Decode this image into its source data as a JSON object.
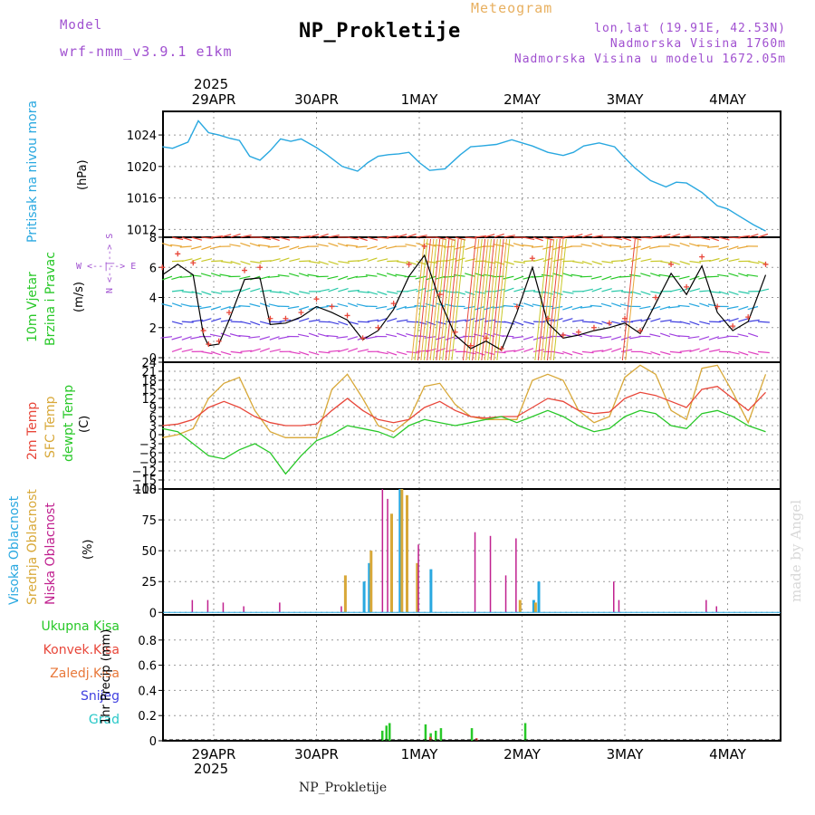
{
  "header": {
    "model_label": "Model",
    "model_name": "wrf-nmm_v3.9.1 e1km",
    "title": "NP_Prokletije",
    "subtitle": "Meteogram",
    "coords": "lon,lat (19.91E, 42.53N)",
    "elevation": "Nadmorska Visina 1760m",
    "model_elevation": "Nadmorska Visina u modelu 1672.05m",
    "footer": "NP_Prokletije",
    "credit": "made by Angel",
    "year": "2025"
  },
  "dates": [
    "29APR",
    "30APR",
    "1MAY",
    "2MAY",
    "3MAY",
    "4MAY"
  ],
  "colors": {
    "pressure": "#29a8e0",
    "temp2m": "#e8473a",
    "sfc": "#d8a838",
    "dew": "#28c828",
    "wind_speed": "#000000",
    "wind_gust": "#e8473a",
    "visoka": "#29a8e0",
    "srednja": "#d8a838",
    "niska": "#c0208f",
    "ukupna": "#28c828",
    "konvek": "#e8473a",
    "zaledj": "#e8783a",
    "snijeg": "#4040e0",
    "grad": "#28c8c8"
  },
  "labels": {
    "pressure": "Pritisak na nivou mora",
    "pressure_unit": "(hPa)",
    "wind1": "10m Vjetar",
    "wind2": "Brzina i Pravac",
    "wind_unit": "(m/s)",
    "compass": "W  <--|-->  E",
    "compass_n": "N  <--|-->  S",
    "temp1": "2m Temp",
    "temp2": "SFC Temp",
    "temp3": "dewpt Temp",
    "temp_unit": "(C)",
    "cloud1": "Visoka Oblacnost",
    "cloud2": "Srednja Oblacnost",
    "cloud3": "Niska Oblacnost",
    "cloud_unit": "(%)",
    "precip1": "Ukupna Kisa",
    "precip2": "Konvek.Kisa",
    "precip3": "Zaledj.Kisa",
    "precip4": "Snijeg",
    "precip5": "Grad",
    "precip_unit": "1hr Precip (mm)"
  },
  "chart_data": [
    {
      "type": "line",
      "name": "pressure",
      "ylabel": "(hPa)",
      "ylim": [
        1011,
        1027
      ],
      "yticks": [
        1012,
        1016,
        1020,
        1024
      ],
      "x_days": [
        0,
        0.1,
        0.25,
        0.35,
        0.45,
        0.55,
        0.65,
        0.75,
        0.85,
        0.95,
        1.05,
        1.15,
        1.25,
        1.35,
        1.5,
        1.6,
        1.75,
        1.9,
        2.0,
        2.1,
        2.2,
        2.3,
        2.4,
        2.5,
        2.6,
        2.75,
        2.9,
        3.0,
        3.1,
        3.25,
        3.4,
        3.5,
        3.6,
        3.75,
        3.9,
        4.0,
        4.1,
        4.25,
        4.4,
        4.5,
        4.6,
        4.75,
        4.9,
        5.0,
        5.1,
        5.25,
        5.4,
        5.5,
        5.6,
        5.75,
        5.87
      ],
      "values": [
        1022.5,
        1022.3,
        1023.1,
        1025.8,
        1024.3,
        1024.0,
        1023.6,
        1023.3,
        1021.3,
        1020.8,
        1022.0,
        1023.5,
        1023.2,
        1023.5,
        1022.4,
        1021.5,
        1020.0,
        1019.4,
        1020.5,
        1021.3,
        1021.5,
        1021.6,
        1021.8,
        1020.5,
        1019.5,
        1019.7,
        1021.5,
        1022.5,
        1022.6,
        1022.8,
        1023.4,
        1023.0,
        1022.6,
        1021.8,
        1021.4,
        1021.8,
        1022.6,
        1023.0,
        1022.5,
        1021.1,
        1019.8,
        1018.2,
        1017.4,
        1018.0,
        1017.9,
        1016.7,
        1015.0,
        1014.6,
        1013.8,
        1012.6,
        1011.8
      ]
    },
    {
      "type": "line",
      "name": "wind",
      "ylabel": "(m/s)",
      "ylim": [
        -0.3,
        8
      ],
      "yticks": [
        0,
        2,
        4,
        6,
        8
      ],
      "x_days": [
        0,
        0.15,
        0.3,
        0.4,
        0.45,
        0.55,
        0.65,
        0.8,
        0.95,
        1.05,
        1.2,
        1.35,
        1.5,
        1.65,
        1.8,
        1.95,
        2.1,
        2.25,
        2.4,
        2.55,
        2.7,
        2.85,
        3.0,
        3.15,
        3.3,
        3.45,
        3.6,
        3.75,
        3.9,
        4.05,
        4.2,
        4.35,
        4.5,
        4.65,
        4.8,
        4.95,
        5.1,
        5.25,
        5.4,
        5.55,
        5.7,
        5.87
      ],
      "values": [
        5.5,
        6.2,
        5.5,
        1.5,
        0.8,
        0.9,
        2.5,
        5.2,
        5.3,
        2.2,
        2.3,
        2.7,
        3.4,
        3.0,
        2.5,
        1.2,
        1.8,
        3.2,
        5.4,
        6.8,
        3.8,
        1.5,
        0.6,
        1.1,
        0.5,
        3.0,
        6.0,
        2.3,
        1.3,
        1.5,
        1.8,
        2.0,
        2.3,
        1.6,
        3.6,
        5.6,
        4.2,
        6.1,
        3.0,
        1.8,
        2.4,
        5.5
      ],
      "gust_values": [
        6.0,
        6.9,
        6.3,
        1.8,
        0.9,
        1.1,
        3.0,
        5.8,
        6.0,
        2.6,
        2.6,
        3.0,
        3.9,
        3.4,
        2.8,
        1.3,
        2.0,
        3.6,
        6.2,
        7.4,
        4.2,
        1.7,
        0.8,
        1.3,
        0.6,
        3.4,
        6.6,
        2.6,
        1.5,
        1.7,
        2.0,
        2.3,
        2.6,
        1.8,
        4.0,
        6.2,
        4.7,
        6.7,
        3.4,
        2.1,
        2.7,
        6.2
      ]
    },
    {
      "type": "line",
      "name": "temperature",
      "ylabel": "(C)",
      "ylim": [
        -18,
        24
      ],
      "yticks": [
        -18,
        -15,
        -12,
        -9,
        -6,
        -3,
        0,
        3,
        6,
        9,
        12,
        15,
        18,
        21,
        24
      ],
      "x_days": [
        0,
        0.15,
        0.3,
        0.45,
        0.6,
        0.75,
        0.9,
        1.05,
        1.2,
        1.35,
        1.5,
        1.65,
        1.8,
        1.95,
        2.1,
        2.25,
        2.4,
        2.55,
        2.7,
        2.85,
        3.0,
        3.15,
        3.3,
        3.45,
        3.6,
        3.75,
        3.9,
        4.05,
        4.2,
        4.35,
        4.5,
        4.65,
        4.8,
        4.95,
        5.1,
        5.25,
        5.4,
        5.55,
        5.7,
        5.87
      ],
      "series": [
        {
          "name": "2m Temp",
          "values": [
            3,
            3.5,
            5,
            9,
            11,
            9,
            6,
            4,
            3,
            3,
            3.5,
            8,
            12,
            8,
            5,
            4,
            5,
            9,
            11,
            8,
            6,
            5.5,
            6,
            6,
            9,
            12,
            11,
            8,
            7,
            7.5,
            12,
            14,
            13,
            11,
            9,
            15,
            16,
            12,
            8,
            14
          ]
        },
        {
          "name": "SFC Temp",
          "values": [
            -1,
            0,
            2,
            12,
            17,
            19,
            8,
            1,
            -1,
            -1,
            -1,
            15,
            20,
            12,
            3,
            1,
            5,
            16,
            17,
            10,
            6,
            5,
            5,
            5,
            18,
            20,
            18,
            8,
            4,
            6,
            19,
            23,
            20,
            8,
            5,
            22,
            23,
            14,
            4,
            20
          ]
        },
        {
          "name": "dewpt Temp",
          "values": [
            2,
            1,
            -3,
            -7,
            -8,
            -5,
            -3,
            -6,
            -13,
            -7,
            -2,
            0,
            3,
            2,
            1,
            -1,
            3,
            5,
            4,
            3,
            4,
            5,
            6,
            4,
            6,
            8,
            6,
            3,
            1,
            2,
            6,
            8,
            7,
            3,
            2,
            7,
            8,
            6,
            3,
            1
          ]
        }
      ]
    },
    {
      "type": "bar",
      "name": "cloud",
      "ylabel": "(%)",
      "ylim": [
        -2,
        100
      ],
      "yticks": [
        0,
        25,
        50,
        75,
        100
      ],
      "series": [
        {
          "name": "Visoka Oblacnost",
          "x_days": [
            1.95,
            2.0,
            2.3,
            2.6,
            3.6,
            3.65
          ],
          "values": [
            25,
            40,
            100,
            35,
            10,
            25
          ]
        },
        {
          "name": "Srednja Oblacnost",
          "x_days": [
            1.75,
            2.0,
            2.2,
            2.3,
            2.35,
            2.45,
            3.45,
            3.6
          ],
          "values": [
            30,
            50,
            80,
            100,
            95,
            40,
            10,
            8
          ]
        },
        {
          "name": "Niska Oblacnost",
          "x_days": [
            0.25,
            0.4,
            0.55,
            0.75,
            1.1,
            1.7,
            2.1,
            2.15,
            2.45,
            3.0,
            3.15,
            3.3,
            3.4,
            4.35,
            4.4,
            5.25,
            5.35
          ],
          "values": [
            10,
            10,
            8,
            5,
            8,
            5,
            100,
            92,
            55,
            65,
            62,
            30,
            60,
            25,
            10,
            10,
            5
          ]
        }
      ]
    },
    {
      "type": "bar",
      "name": "precipitation",
      "ylabel": "1hr Precip (mm)",
      "ylim": [
        0,
        1.0
      ],
      "yticks": [
        0,
        0.2,
        0.4,
        0.6,
        0.8
      ],
      "series": [
        {
          "name": "Ukupna Kisa",
          "x_days": [
            2.13,
            2.17,
            2.2,
            2.55,
            2.6,
            2.65,
            2.7,
            3.0,
            3.52
          ],
          "values": [
            0.08,
            0.12,
            0.14,
            0.13,
            0.06,
            0.08,
            0.1,
            0.1,
            0.14
          ]
        },
        {
          "name": "Konvek.Kisa",
          "x_days": [
            2.57,
            3.02
          ],
          "values": [
            0.03,
            0.02
          ]
        }
      ]
    }
  ]
}
